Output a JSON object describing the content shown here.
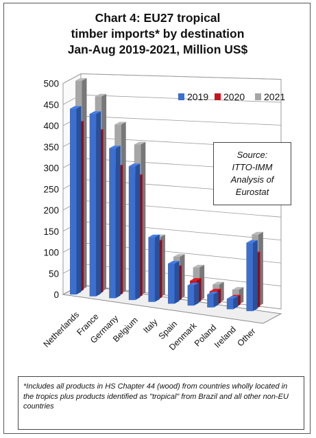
{
  "chart_data": {
    "type": "bar",
    "title": "Chart 4: EU27 tropical timber imports* by destination Jan-Aug 2019-2021, Million US$",
    "title_lines": [
      "Chart 4: EU27 tropical",
      "timber imports* by destination",
      "Jan-Aug 2019-2021, Million US$"
    ],
    "categories": [
      "Netherlands",
      "France",
      "Germany",
      "Belgium",
      "Italy",
      "Spain",
      "Denmark",
      "Poland",
      "Ireland",
      "Other"
    ],
    "series": [
      {
        "name": "2019",
        "color": "#3b6fd0",
        "values": [
          440,
          432,
          355,
          317,
          153,
          95,
          48,
          31,
          25,
          162
        ]
      },
      {
        "name": "2020",
        "color": "#c8141e",
        "values": [
          400,
          385,
          305,
          287,
          136,
          80,
          54,
          33,
          23,
          130
        ]
      },
      {
        "name": "2021",
        "color": "#a6a6a6",
        "values": [
          495,
          462,
          400,
          357,
          142,
          100,
          79,
          43,
          35,
          170
        ]
      }
    ],
    "yticks": [
      0,
      50,
      100,
      150,
      200,
      250,
      300,
      350,
      400,
      450,
      500
    ],
    "ylim": [
      0,
      500
    ],
    "grid": true,
    "legend_position": "top-right",
    "xlabel": "",
    "ylabel": ""
  },
  "source_note": "Source:\nITTO-IMM\nAnalysis of\nEurostat",
  "footnote": "*Includes all products in HS Chapter 44 (wood) from countries wholly located in the tropics plus products identified as \"tropical\" from Brazil and all other non-EU countries"
}
